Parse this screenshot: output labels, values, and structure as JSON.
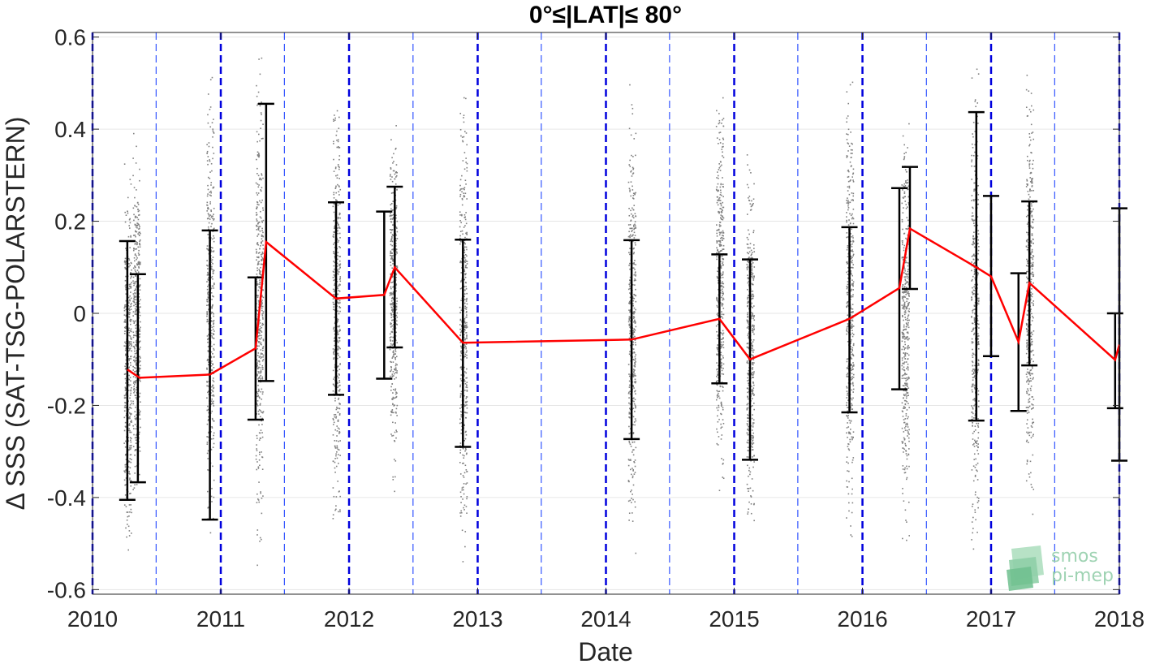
{
  "chart_data": {
    "type": "scatter",
    "title": "0°≤|LAT|≤ 80°",
    "xlabel": "Date",
    "ylabel": "Δ SSS (SAT-TSG-POLARSTERN)",
    "xlim": [
      "2010-01-01",
      "2018-01-01"
    ],
    "ylim": [
      -0.61,
      0.61
    ],
    "x_ticks": [
      "2010",
      "2011",
      "2012",
      "2013",
      "2014",
      "2015",
      "2016",
      "2017",
      "2018"
    ],
    "y_ticks": [
      "-0.6",
      "-0.4",
      "-0.2",
      "0",
      "0.2",
      "0.4",
      "0.6"
    ],
    "y_tick_values": [
      -0.6,
      -0.4,
      -0.2,
      0,
      0.2,
      0.4,
      0.6
    ],
    "grid": true,
    "year_lines": [
      "2010-01-01",
      "2011-01-01",
      "2012-01-01",
      "2013-01-01",
      "2014-01-01",
      "2015-01-01",
      "2016-01-01",
      "2017-01-01",
      "2018-01-01"
    ],
    "half_year_lines": [
      "2010-07-01",
      "2011-07-01",
      "2012-07-01",
      "2013-07-01",
      "2014-07-01",
      "2015-07-01",
      "2016-07-01",
      "2017-07-01"
    ],
    "series": [
      {
        "kind": "scatter",
        "color": "#808080",
        "clusters": [
          {
            "date": "2010-04-10",
            "min": -0.6,
            "max": 0.37
          },
          {
            "date": "2010-05-05",
            "min": -0.48,
            "max": 0.43
          },
          {
            "date": "2010-12-01",
            "min": -0.6,
            "max": 0.6
          },
          {
            "date": "2011-04-20",
            "min": -0.58,
            "max": 0.6
          },
          {
            "date": "2011-11-25",
            "min": -0.55,
            "max": 0.58
          },
          {
            "date": "2012-05-05",
            "min": -0.42,
            "max": 0.48
          },
          {
            "date": "2012-11-20",
            "min": -0.6,
            "max": 0.57
          },
          {
            "date": "2014-03-15",
            "min": -0.58,
            "max": 0.55
          },
          {
            "date": "2014-11-20",
            "min": -0.45,
            "max": 0.57
          },
          {
            "date": "2015-02-15",
            "min": -0.55,
            "max": 0.41
          },
          {
            "date": "2015-11-25",
            "min": -0.6,
            "max": 0.6
          },
          {
            "date": "2016-05-01",
            "min": -0.57,
            "max": 0.52
          },
          {
            "date": "2016-11-15",
            "min": -0.58,
            "max": 0.6
          },
          {
            "date": "2017-04-20",
            "min": -0.52,
            "max": 0.6
          }
        ]
      },
      {
        "kind": "errorbar",
        "color": "#000000",
        "bars": [
          {
            "date": "2010-04-10",
            "low": -0.405,
            "high": 0.157
          },
          {
            "date": "2010-05-10",
            "low": -0.367,
            "high": 0.085
          },
          {
            "date": "2010-12-01",
            "low": -0.448,
            "high": 0.18
          },
          {
            "date": "2011-04-10",
            "low": -0.231,
            "high": 0.078
          },
          {
            "date": "2011-05-10",
            "low": -0.147,
            "high": 0.455
          },
          {
            "date": "2011-11-25",
            "low": -0.177,
            "high": 0.241
          },
          {
            "date": "2012-04-10",
            "low": -0.142,
            "high": 0.221
          },
          {
            "date": "2012-05-10",
            "low": -0.074,
            "high": 0.275
          },
          {
            "date": "2012-11-20",
            "low": -0.29,
            "high": 0.16
          },
          {
            "date": "2014-03-15",
            "low": -0.273,
            "high": 0.159
          },
          {
            "date": "2014-11-20",
            "low": -0.152,
            "high": 0.128
          },
          {
            "date": "2015-02-15",
            "low": -0.318,
            "high": 0.117
          },
          {
            "date": "2015-11-25",
            "low": -0.215,
            "high": 0.187
          },
          {
            "date": "2016-04-15",
            "low": -0.165,
            "high": 0.272
          },
          {
            "date": "2016-05-15",
            "low": 0.053,
            "high": 0.318
          },
          {
            "date": "2016-11-20",
            "low": -0.233,
            "high": 0.437
          },
          {
            "date": "2017-01-01",
            "low": -0.093,
            "high": 0.255
          },
          {
            "date": "2017-03-20",
            "low": -0.212,
            "high": 0.087
          },
          {
            "date": "2017-04-20",
            "low": -0.113,
            "high": 0.243
          },
          {
            "date": "2017-12-20",
            "low": -0.206,
            "high": 0.0
          },
          {
            "date": "2018-01-01",
            "low": -0.32,
            "high": 0.228
          }
        ]
      },
      {
        "kind": "line",
        "color": "#ff0000",
        "x": [
          "2010-04-10",
          "2010-05-15",
          "2010-12-01",
          "2011-04-10",
          "2011-05-10",
          "2011-11-25",
          "2012-04-10",
          "2012-05-10",
          "2012-11-20",
          "2014-03-15",
          "2014-11-20",
          "2015-02-15",
          "2015-11-25",
          "2016-04-15",
          "2016-05-15",
          "2016-11-20",
          "2017-01-01",
          "2017-03-20",
          "2017-04-20",
          "2017-12-20",
          "2018-01-01"
        ],
        "y": [
          -0.122,
          -0.14,
          -0.133,
          -0.076,
          0.155,
          0.032,
          0.04,
          0.1,
          -0.064,
          -0.057,
          -0.012,
          -0.1,
          -0.012,
          0.055,
          0.184,
          0.1,
          0.08,
          -0.062,
          0.066,
          -0.101,
          -0.068
        ]
      }
    ]
  },
  "logo": {
    "line1": "smos",
    "line2": "pi-mep"
  },
  "colors": {
    "year_line": "#0000dd",
    "half_year_line": "#3355ff",
    "scatter": "#808080",
    "mean_line": "#ff0000",
    "errorbar": "#000000",
    "grid": "#e6e6e6",
    "axis": "#262626"
  }
}
